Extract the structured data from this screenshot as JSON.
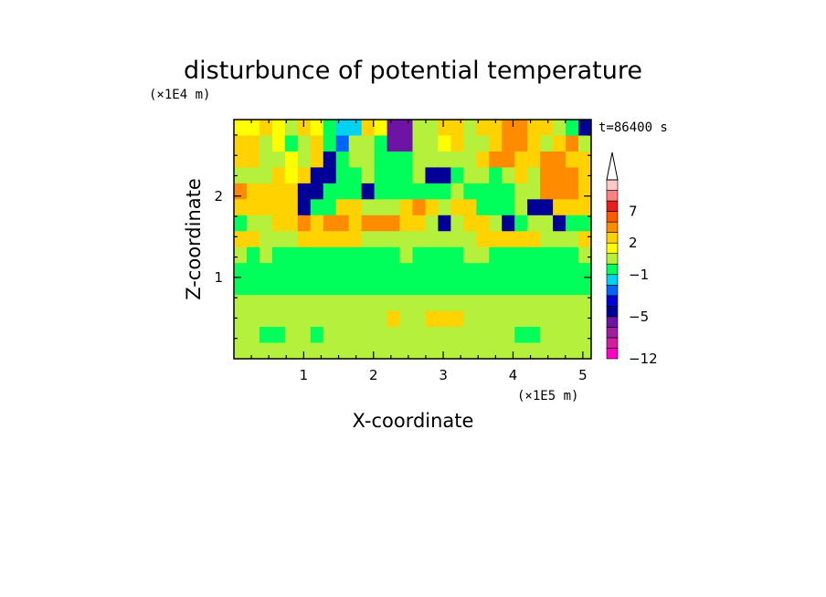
{
  "chart_data": {
    "type": "heatmap",
    "title": "disturbunce of potential temperature",
    "time_label": "t=86400 s",
    "xlabel": "X-coordinate",
    "ylabel": "Z-coordinate",
    "x_unit": "(×1E5 m)",
    "y_unit": "(×1E4 m)",
    "xlim": [
      0,
      5.12
    ],
    "ylim": [
      0,
      2.94
    ],
    "x_ticks": [
      1,
      2,
      3,
      4,
      5
    ],
    "y_ticks": [
      1,
      2
    ],
    "grid": false,
    "colorbar": {
      "placement": "right",
      "boundaries": [
        -12,
        -10,
        -8,
        -6,
        -5,
        -4,
        -3,
        -2,
        -1,
        0,
        1,
        2,
        3,
        5,
        7,
        9,
        11
      ],
      "tick_labels": [
        "-12",
        "-5",
        "-1",
        "2",
        "7"
      ],
      "colors": [
        "#ff00c8",
        "#d21ea0",
        "#a01ea0",
        "#6e14a5",
        "#000096",
        "#0000d2",
        "#0064ff",
        "#00d2f0",
        "#00ff5a",
        "#b4f03c",
        "#ffff00",
        "#ffd200",
        "#ff8c00",
        "#ff5a00",
        "#e61e1e",
        "#ff8282",
        "#ffc8c8"
      ],
      "extend": "max"
    },
    "field_z_rows_top_to_bottom": [
      [
        1,
        1,
        2,
        1,
        0.5,
        2,
        1,
        -1,
        -2,
        -2,
        2,
        1,
        -6,
        -6,
        0.5,
        0.5,
        2,
        2,
        0.5,
        2,
        2,
        4,
        4,
        2,
        2,
        0.5,
        -1,
        -5
      ],
      [
        2,
        2,
        0.5,
        1,
        -1,
        0.5,
        2,
        -1,
        -3,
        0.5,
        0.5,
        -1,
        -6,
        -6,
        0.5,
        0.5,
        1,
        2,
        0.5,
        0.5,
        2,
        4,
        4,
        2,
        0.5,
        2,
        4,
        0.5
      ],
      [
        2,
        2,
        0.5,
        0.5,
        1,
        0.5,
        2,
        -5,
        -1,
        0.5,
        0.5,
        -1,
        -0.5,
        -1,
        0.5,
        0.5,
        0.5,
        0.5,
        0.5,
        2,
        4,
        4,
        2,
        2,
        4,
        4,
        2,
        2
      ],
      [
        0.5,
        0.5,
        0.5,
        2,
        1,
        2,
        -5,
        -5,
        -1,
        -1,
        0.5,
        -0.5,
        -1,
        -1,
        0.5,
        -5,
        -5,
        -1,
        0.5,
        0.5,
        -1,
        0.5,
        2,
        0.5,
        4,
        4,
        4,
        2
      ],
      [
        4,
        2,
        2,
        2,
        2,
        -5,
        -5,
        -1,
        -1,
        -1,
        -5,
        -1,
        -1,
        -0.5,
        -1,
        -1,
        -0.5,
        0.5,
        -1,
        -1,
        -1,
        -0.5,
        0.5,
        0.5,
        4,
        4,
        4,
        2
      ],
      [
        2,
        2,
        2,
        2,
        2,
        -5,
        -1,
        -1,
        2,
        2,
        0.5,
        0.5,
        0.5,
        2,
        4,
        2,
        0.5,
        2,
        2,
        -1,
        -1,
        -1,
        0.5,
        -5,
        -5,
        2,
        2,
        2
      ],
      [
        -1,
        0.5,
        0.5,
        2,
        2,
        4,
        2,
        4,
        4,
        2,
        4,
        4,
        4,
        2,
        2,
        0.5,
        -5,
        0.5,
        2,
        2,
        0.5,
        -5,
        -1,
        0.5,
        0.5,
        -5,
        -1,
        -1
      ],
      [
        2,
        2,
        0.5,
        0.5,
        0.5,
        2,
        2,
        2,
        2,
        2,
        0.5,
        0.5,
        0.5,
        0.5,
        0.5,
        0.5,
        0.5,
        0.5,
        0.5,
        2,
        2,
        2,
        2,
        2,
        0.5,
        0.5,
        0.5,
        2
      ],
      [
        0.5,
        -0.5,
        0.5,
        -0.5,
        -0.5,
        -0.5,
        -0.5,
        -0.5,
        -0.5,
        -0.5,
        -0.5,
        -0.5,
        -0.5,
        0.5,
        -0.5,
        -0.5,
        -0.5,
        -0.5,
        0.5,
        0.5,
        -0.5,
        -0.5,
        -0.5,
        -0.5,
        -0.5,
        -0.5,
        -0.5,
        0.5
      ],
      [
        -0.5,
        -0.5,
        -0.5,
        -0.5,
        -0.5,
        -0.5,
        -0.5,
        -0.5,
        -0.5,
        -0.5,
        -0.5,
        -0.5,
        -0.5,
        -0.5,
        -0.5,
        -0.5,
        -0.5,
        -0.5,
        -0.5,
        -0.5,
        -0.5,
        -0.5,
        -0.5,
        -0.5,
        -0.5,
        -0.5,
        -0.5,
        -0.5
      ],
      [
        -0.5,
        -0.5,
        -0.5,
        -0.5,
        -0.5,
        -0.5,
        -0.5,
        -0.5,
        -0.5,
        -0.5,
        -0.5,
        -0.5,
        -0.5,
        -0.5,
        -0.5,
        -0.5,
        -0.5,
        -0.5,
        -0.5,
        -0.5,
        -0.5,
        -0.5,
        -0.5,
        -0.5,
        -0.5,
        -0.5,
        -0.5,
        -0.5
      ],
      [
        0.5,
        0.5,
        0.5,
        0.5,
        0.5,
        0.5,
        0.5,
        0.5,
        0.5,
        0.5,
        0.5,
        0.5,
        0.5,
        0.5,
        0.5,
        0.5,
        0.5,
        0.5,
        0.5,
        0.5,
        0.5,
        0.5,
        0.5,
        0.5,
        0.5,
        0.5,
        0.5,
        0.5
      ],
      [
        0.5,
        0.5,
        0.5,
        0.5,
        0.5,
        0.5,
        0.5,
        0.5,
        0.5,
        0.5,
        0.5,
        0.5,
        2,
        0.5,
        0.5,
        2,
        2,
        2,
        0.5,
        0.5,
        0.5,
        0.5,
        0.5,
        0.5,
        0.5,
        0.5,
        0.5,
        0.5
      ],
      [
        0.5,
        0.5,
        -0.5,
        -0.5,
        0.5,
        0.5,
        -0.5,
        0.5,
        0.5,
        0.5,
        0.5,
        0.5,
        0.5,
        0.5,
        0.5,
        0.5,
        0.5,
        0.5,
        0.5,
        0.5,
        0.5,
        0.5,
        -0.5,
        -0.5,
        0.5,
        0.5,
        0.5,
        0.5
      ],
      [
        0.5,
        0.5,
        0.5,
        0.5,
        0.5,
        0.5,
        0.5,
        0.5,
        0.5,
        0.5,
        0.5,
        0.5,
        0.5,
        0.5,
        0.5,
        0.5,
        0.5,
        0.5,
        0.5,
        0.5,
        0.5,
        0.5,
        0.5,
        0.5,
        0.5,
        0.5,
        0.5,
        0.5
      ]
    ]
  }
}
